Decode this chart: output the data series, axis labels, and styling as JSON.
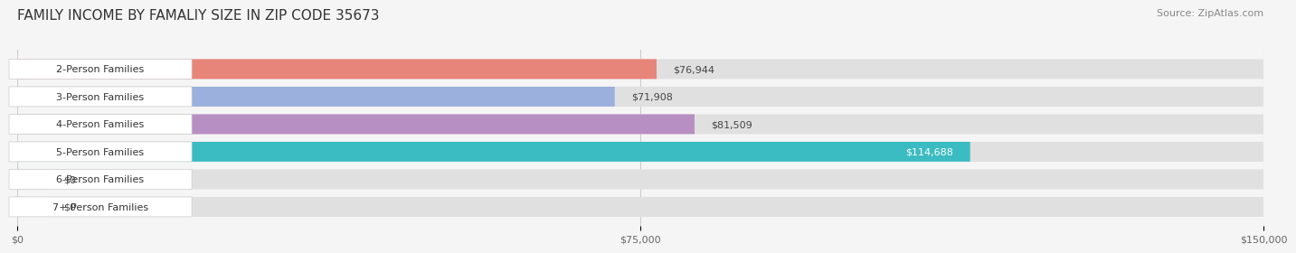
{
  "title": "FAMILY INCOME BY FAMALIY SIZE IN ZIP CODE 35673",
  "source": "Source: ZipAtlas.com",
  "categories": [
    "2-Person Families",
    "3-Person Families",
    "4-Person Families",
    "5-Person Families",
    "6-Person Families",
    "7+ Person Families"
  ],
  "values": [
    76944,
    71908,
    81509,
    114688,
    0,
    0
  ],
  "bar_colors": [
    "#E8857A",
    "#9BB0DC",
    "#B88FC2",
    "#3BBCC2",
    "#B0B8E8",
    "#F4A0B8"
  ],
  "value_labels": [
    "$76,944",
    "$71,908",
    "$81,509",
    "$114,688",
    "$0",
    "$0"
  ],
  "value_inside": [
    false,
    false,
    false,
    true,
    false,
    false
  ],
  "xlim": [
    0,
    150000
  ],
  "xticks": [
    0,
    75000,
    150000
  ],
  "xticklabels": [
    "$0",
    "$75,000",
    "$150,000"
  ],
  "background_color": "#f5f5f5",
  "bar_background": "#e0e0e0",
  "title_fontsize": 11,
  "source_fontsize": 8,
  "label_fontsize": 8,
  "value_fontsize": 8,
  "zero_bar_width": 3500
}
